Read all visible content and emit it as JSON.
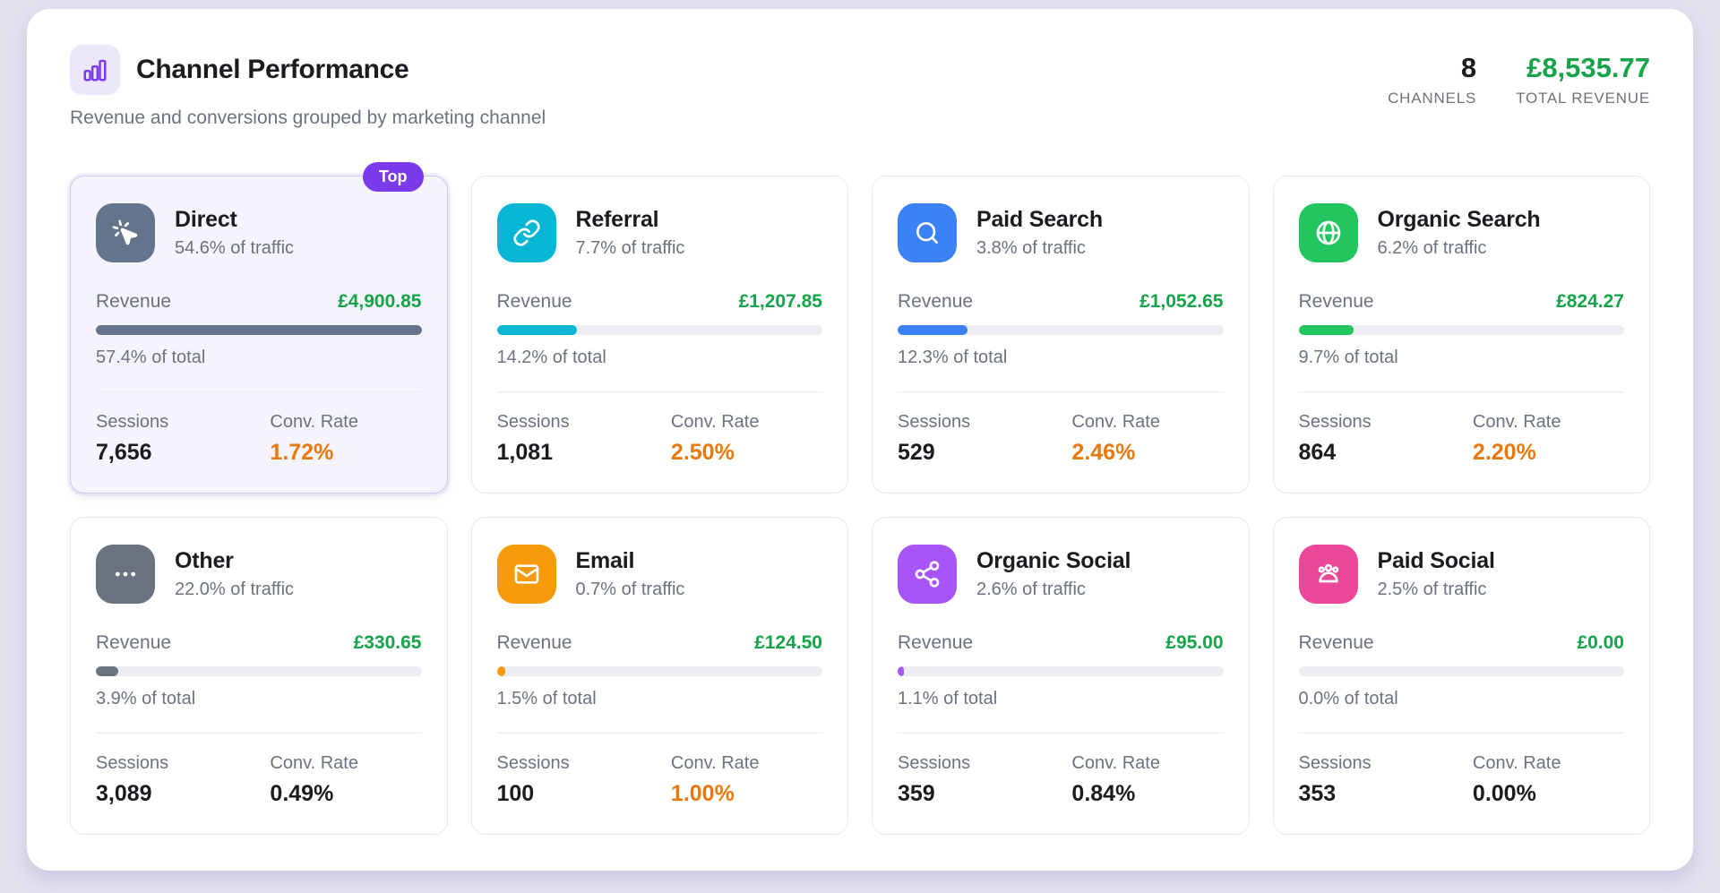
{
  "header": {
    "title": "Channel Performance",
    "subtitle": "Revenue and conversions grouped by marketing channel",
    "channels_count": "8",
    "channels_label": "CHANNELS",
    "total_revenue": "£8,535.77",
    "total_revenue_label": "TOTAL REVENUE"
  },
  "labels": {
    "revenue": "Revenue",
    "sessions": "Sessions",
    "conv_rate": "Conv. Rate"
  },
  "colors": {
    "accent_purple": "#7c3aed",
    "revenue_green": "#16a34a",
    "conv_orange": "#e8790e",
    "text_gray": "#6b7280",
    "page_background": "#e4e1ef",
    "bar_track": "#ececf1"
  },
  "cards": [
    {
      "name": "Direct",
      "icon": "cursor-click-icon",
      "color": "#64748b",
      "traffic": "54.6% of traffic",
      "revenue": "£4,900.85",
      "share": "57.4% of total",
      "bar_pct": 100,
      "sessions": "7,656",
      "conv_rate": "1.72%",
      "conv_highlight": true,
      "badge": "Top",
      "highlighted": true
    },
    {
      "name": "Referral",
      "icon": "link-icon",
      "color": "#06b6d4",
      "traffic": "7.7% of traffic",
      "revenue": "£1,207.85",
      "share": "14.2% of total",
      "bar_pct": 24.7,
      "sessions": "1,081",
      "conv_rate": "2.50%",
      "conv_highlight": true
    },
    {
      "name": "Paid Search",
      "icon": "search-icon",
      "color": "#3b82f6",
      "traffic": "3.8% of traffic",
      "revenue": "£1,052.65",
      "share": "12.3% of total",
      "bar_pct": 21.4,
      "sessions": "529",
      "conv_rate": "2.46%",
      "conv_highlight": true
    },
    {
      "name": "Organic Search",
      "icon": "globe-icon",
      "color": "#22c55e",
      "traffic": "6.2% of traffic",
      "revenue": "£824.27",
      "share": "9.7% of total",
      "bar_pct": 16.9,
      "sessions": "864",
      "conv_rate": "2.20%",
      "conv_highlight": true
    },
    {
      "name": "Other",
      "icon": "ellipsis-icon",
      "color": "#6b7280",
      "traffic": "22.0% of traffic",
      "revenue": "£330.65",
      "share": "3.9% of total",
      "bar_pct": 6.8,
      "sessions": "3,089",
      "conv_rate": "0.49%",
      "conv_highlight": false
    },
    {
      "name": "Email",
      "icon": "mail-icon",
      "color": "#f79a09",
      "traffic": "0.7% of traffic",
      "revenue": "£124.50",
      "share": "1.5% of total",
      "bar_pct": 2.6,
      "sessions": "100",
      "conv_rate": "1.00%",
      "conv_highlight": true
    },
    {
      "name": "Organic Social",
      "icon": "share-nodes-icon",
      "color": "#a855f7",
      "traffic": "2.6% of traffic",
      "revenue": "£95.00",
      "share": "1.1% of total",
      "bar_pct": 1.9,
      "sessions": "359",
      "conv_rate": "0.84%",
      "conv_highlight": false
    },
    {
      "name": "Paid Social",
      "icon": "users-icon",
      "color": "#ec4899",
      "traffic": "2.5% of traffic",
      "revenue": "£0.00",
      "share": "0.0% of total",
      "bar_pct": 0,
      "sessions": "353",
      "conv_rate": "0.00%",
      "conv_highlight": false
    }
  ]
}
